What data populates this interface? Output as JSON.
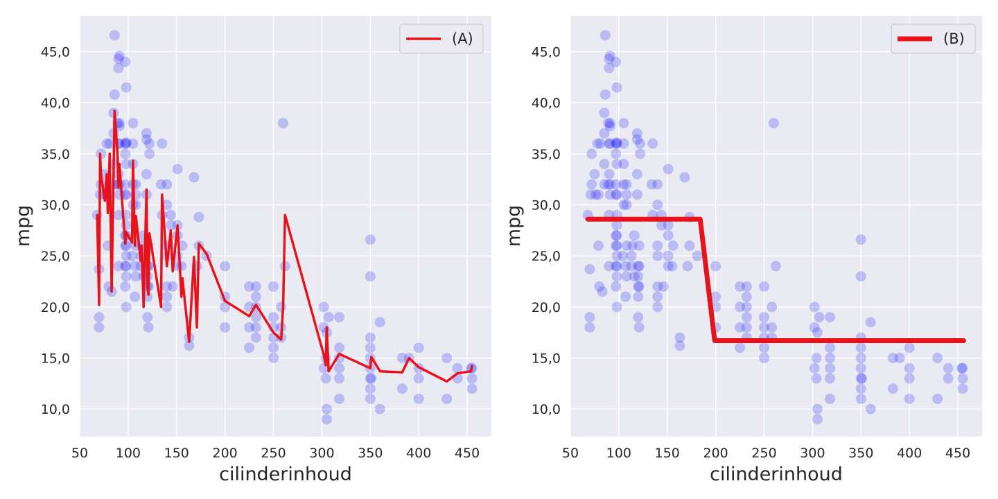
{
  "chart_data": [
    {
      "type": "scatter",
      "xlabel": "cilinderinhoud",
      "ylabel": "mpg",
      "xlim": [
        50,
        475
      ],
      "ylim": [
        7.3,
        48.5
      ],
      "xticks": [
        50,
        100,
        150,
        200,
        250,
        300,
        350,
        400,
        450
      ],
      "xtick_labels": [
        "50",
        "100",
        "150",
        "200",
        "250",
        "300",
        "350",
        "400",
        "450"
      ],
      "yticks": [
        10,
        15,
        20,
        25,
        30,
        35,
        40,
        45
      ],
      "ytick_labels": [
        "10,0",
        "15,0",
        "20,0",
        "25,0",
        "30,0",
        "35,0",
        "40,0",
        "45,0"
      ],
      "grid": true,
      "legend_position": "top-right",
      "scatter_color": "#0000ff",
      "points": [
        [
          68,
          29
        ],
        [
          70,
          23.7
        ],
        [
          70,
          19
        ],
        [
          70,
          18
        ],
        [
          71,
          31
        ],
        [
          72,
          32
        ],
        [
          72,
          35
        ],
        [
          75,
          33
        ],
        [
          76,
          31
        ],
        [
          78,
          36
        ],
        [
          79,
          26
        ],
        [
          79,
          31
        ],
        [
          80,
          22
        ],
        [
          81,
          36
        ],
        [
          83,
          21.5
        ],
        [
          85,
          32
        ],
        [
          85,
          34
        ],
        [
          85,
          37
        ],
        [
          85,
          39
        ],
        [
          86,
          40.8
        ],
        [
          86,
          46.6
        ],
        [
          89,
          38
        ],
        [
          89,
          32
        ],
        [
          90,
          44.3
        ],
        [
          90,
          43.4
        ],
        [
          90,
          33
        ],
        [
          90,
          36
        ],
        [
          90,
          29
        ],
        [
          90,
          24
        ],
        [
          91,
          31
        ],
        [
          91,
          38
        ],
        [
          91,
          37.7
        ],
        [
          91,
          32
        ],
        [
          91,
          44.6
        ],
        [
          91,
          36
        ],
        [
          97,
          26
        ],
        [
          97,
          27
        ],
        [
          97,
          31
        ],
        [
          97,
          24
        ],
        [
          97,
          35
        ],
        [
          97,
          44
        ],
        [
          97,
          32
        ],
        [
          97,
          36
        ],
        [
          97,
          22
        ],
        [
          98,
          29
        ],
        [
          98,
          25
        ],
        [
          98,
          31
        ],
        [
          98,
          41.5
        ],
        [
          98,
          27
        ],
        [
          98,
          36.1
        ],
        [
          98,
          34
        ],
        [
          98,
          28
        ],
        [
          98,
          36
        ],
        [
          98,
          26
        ],
        [
          98,
          20
        ],
        [
          98,
          23
        ],
        [
          98,
          24
        ],
        [
          104,
          25
        ],
        [
          105,
          34
        ],
        [
          105,
          36
        ],
        [
          105,
          38
        ],
        [
          105,
          32
        ],
        [
          105,
          30
        ],
        [
          107,
          21
        ],
        [
          107,
          24
        ],
        [
          108,
          31
        ],
        [
          108,
          32
        ],
        [
          108,
          23
        ],
        [
          108,
          30
        ],
        [
          108,
          26
        ],
        [
          113,
          24
        ],
        [
          113,
          25
        ],
        [
          114,
          26
        ],
        [
          116,
          27
        ],
        [
          116,
          23
        ],
        [
          119,
          36.4
        ],
        [
          119,
          33
        ],
        [
          119,
          37
        ],
        [
          119,
          31
        ],
        [
          120,
          19
        ],
        [
          120,
          24
        ],
        [
          120,
          23
        ],
        [
          120,
          22
        ],
        [
          120,
          21
        ],
        [
          121,
          22
        ],
        [
          121,
          26
        ],
        [
          121,
          24
        ],
        [
          121,
          18
        ],
        [
          122,
          35
        ],
        [
          122,
          36
        ],
        [
          134,
          32
        ],
        [
          135,
          36
        ],
        [
          135,
          29
        ],
        [
          140,
          20
        ],
        [
          140,
          21
        ],
        [
          140,
          22
        ],
        [
          140,
          25
        ],
        [
          140,
          26
        ],
        [
          140,
          30
        ],
        [
          140,
          32
        ],
        [
          144,
          29
        ],
        [
          144,
          28
        ],
        [
          146,
          22
        ],
        [
          151,
          24
        ],
        [
          151,
          27
        ],
        [
          151,
          25
        ],
        [
          151,
          33.5
        ],
        [
          151,
          28
        ],
        [
          155,
          24
        ],
        [
          156,
          26
        ],
        [
          163,
          16.2
        ],
        [
          163,
          17
        ],
        [
          168,
          32.7
        ],
        [
          171,
          24
        ],
        [
          173,
          26
        ],
        [
          173,
          28.8
        ],
        [
          181,
          25
        ],
        [
          200,
          21
        ],
        [
          200,
          20
        ],
        [
          200,
          18
        ],
        [
          200,
          24
        ],
        [
          225,
          16
        ],
        [
          225,
          22
        ],
        [
          225,
          20
        ],
        [
          225,
          18
        ],
        [
          232,
          22
        ],
        [
          232,
          21
        ],
        [
          232,
          18
        ],
        [
          232,
          19
        ],
        [
          232,
          20
        ],
        [
          232,
          17
        ],
        [
          250,
          15
        ],
        [
          250,
          16
        ],
        [
          250,
          17
        ],
        [
          250,
          18
        ],
        [
          250,
          19
        ],
        [
          250,
          22
        ],
        [
          258,
          17
        ],
        [
          258,
          20
        ],
        [
          258,
          18
        ],
        [
          260,
          38
        ],
        [
          262,
          24
        ],
        [
          302,
          14
        ],
        [
          302,
          18
        ],
        [
          302,
          20
        ],
        [
          304,
          13
        ],
        [
          304,
          15
        ],
        [
          305,
          9
        ],
        [
          305,
          17.5
        ],
        [
          305,
          10
        ],
        [
          307,
          19
        ],
        [
          318,
          15
        ],
        [
          318,
          16
        ],
        [
          318,
          14
        ],
        [
          318,
          13
        ],
        [
          318,
          11
        ],
        [
          318,
          19
        ],
        [
          350,
          13
        ],
        [
          350,
          14
        ],
        [
          350,
          15
        ],
        [
          350,
          16
        ],
        [
          350,
          17
        ],
        [
          350,
          11
        ],
        [
          350,
          12
        ],
        [
          350,
          23
        ],
        [
          350,
          26.6
        ],
        [
          351,
          13
        ],
        [
          360,
          18.5
        ],
        [
          360,
          10
        ],
        [
          383,
          15
        ],
        [
          383,
          12
        ],
        [
          390,
          15
        ],
        [
          400,
          11
        ],
        [
          400,
          13
        ],
        [
          400,
          14
        ],
        [
          400,
          16
        ],
        [
          429,
          11
        ],
        [
          429,
          15
        ],
        [
          440,
          13
        ],
        [
          440,
          14
        ],
        [
          454,
          14
        ],
        [
          455,
          13
        ],
        [
          455,
          14
        ],
        [
          455,
          12
        ]
      ],
      "series": [
        {
          "name": "(A)",
          "color": "#e8121a",
          "x": [
            68,
            70,
            71,
            72,
            76,
            78,
            79,
            81,
            83,
            85,
            86,
            89,
            90,
            91,
            97,
            98,
            104,
            105,
            107,
            108,
            113,
            114,
            116,
            119,
            120,
            121,
            122,
            134,
            135,
            140,
            144,
            146,
            151,
            155,
            156,
            163,
            168,
            171,
            173,
            181,
            200,
            225,
            232,
            250,
            258,
            260,
            262,
            302,
            304,
            305,
            307,
            318,
            350,
            351,
            360,
            383,
            390,
            400,
            429,
            440,
            454,
            455
          ],
          "y": [
            29,
            20.2,
            35,
            33,
            30.4,
            33,
            29.2,
            35,
            21.5,
            33.3,
            39.2,
            35.1,
            31.7,
            34,
            26.2,
            27.3,
            26.3,
            34.3,
            26,
            28.9,
            24.5,
            26,
            20,
            31.5,
            22,
            21.2,
            27.2,
            20,
            31,
            24,
            27.5,
            23.5,
            28,
            21,
            22.8,
            16.6,
            24.9,
            18,
            26.2,
            25.2,
            20.6,
            19.1,
            20.2,
            17.5,
            16.8,
            20,
            29,
            15.3,
            14.3,
            18,
            13.7,
            15.4,
            14,
            15.1,
            13.7,
            13.6,
            15,
            14.1,
            12.7,
            13.5,
            13.7,
            14.2
          ]
        },
        {
          "name": "(B)",
          "color": "#e8121a",
          "x": [
            68,
            184,
            199,
            456
          ],
          "y": [
            28.6,
            28.6,
            16.7,
            16.7
          ]
        }
      ]
    }
  ]
}
